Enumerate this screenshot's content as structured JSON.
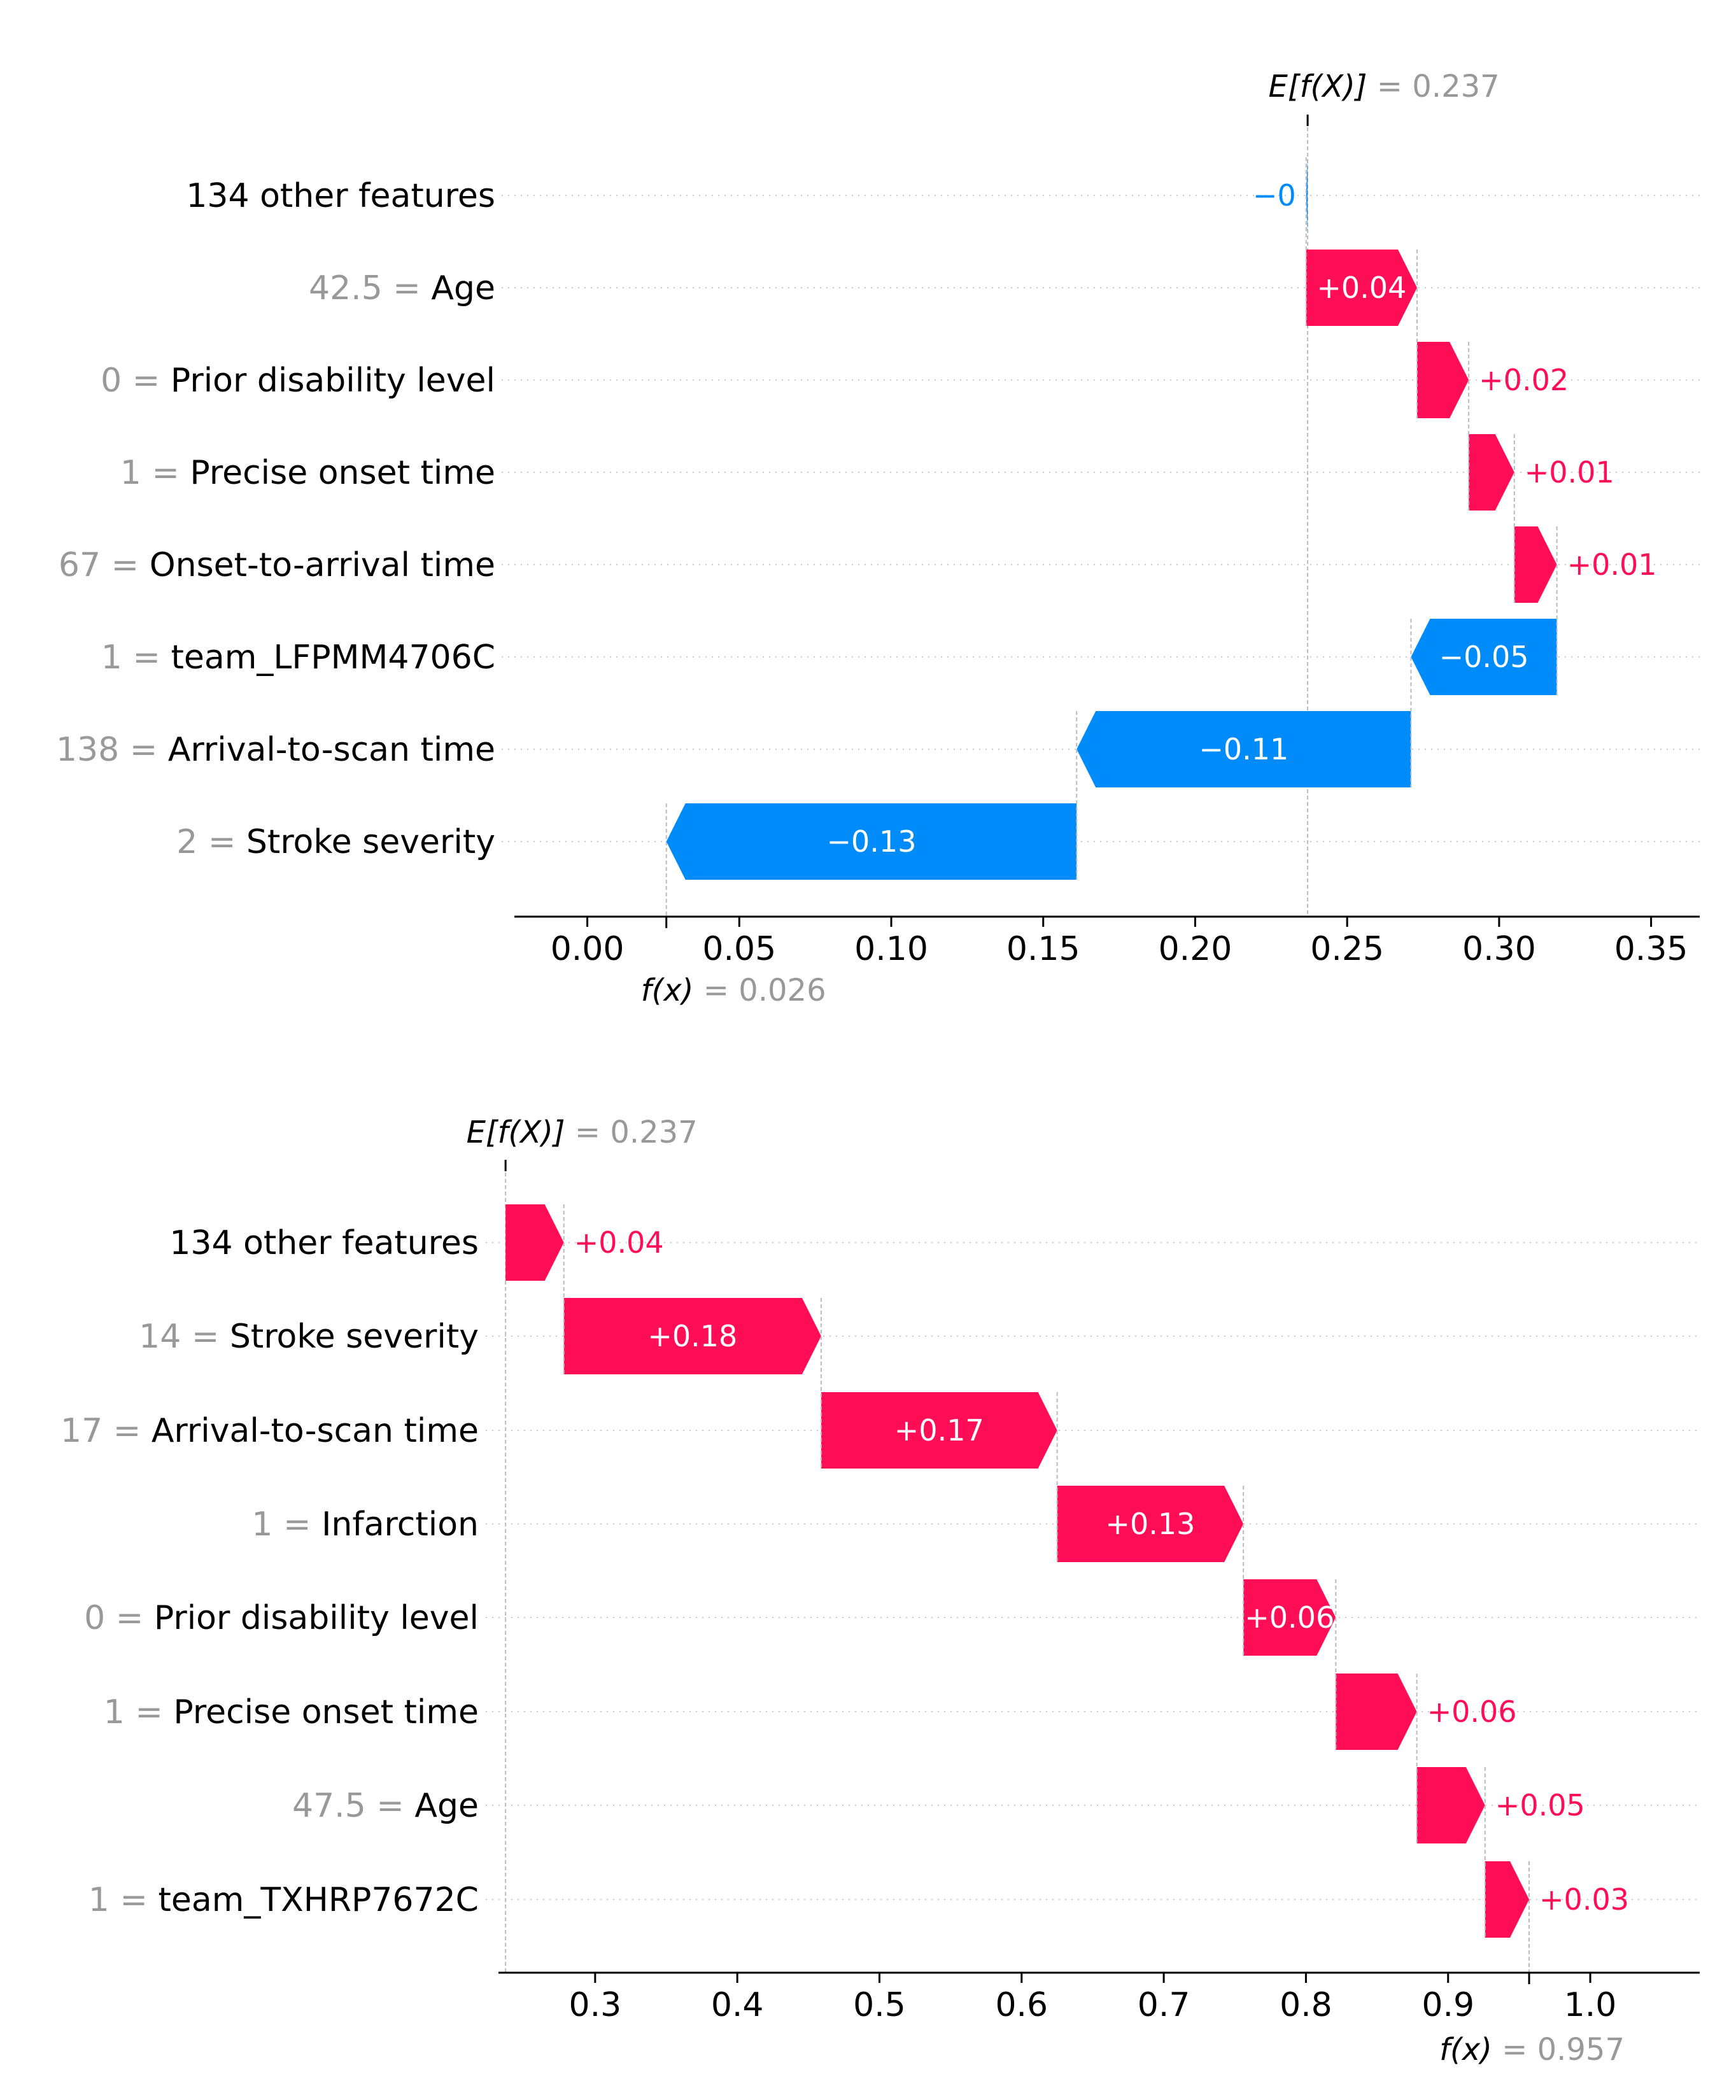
{
  "colors": {
    "positive": "#ff0d57",
    "negative": "#008bfb",
    "gray": "#999999"
  },
  "chart_data": [
    {
      "type": "waterfall",
      "base_value": 0.237,
      "base_label": {
        "math": "E[f(X)]",
        "value": " = 0.237"
      },
      "fx_value": 0.026,
      "fx_label": {
        "math": "f(x)",
        "value": " = 0.026"
      },
      "xlim": [
        -0.024,
        0.366
      ],
      "xticks": [
        {
          "v": 0.0,
          "label": "0.00"
        },
        {
          "v": 0.05,
          "label": "0.05"
        },
        {
          "v": 0.1,
          "label": "0.10"
        },
        {
          "v": 0.15,
          "label": "0.15"
        },
        {
          "v": 0.2,
          "label": "0.20"
        },
        {
          "v": 0.25,
          "label": "0.25"
        },
        {
          "v": 0.3,
          "label": "0.30"
        },
        {
          "v": 0.35,
          "label": "0.35"
        }
      ],
      "features": [
        {
          "value": "",
          "name": "134 other features",
          "start": 0.237,
          "end": 0.2365,
          "label": "−0"
        },
        {
          "value": "42.5",
          "name": "Age",
          "start": 0.2365,
          "end": 0.273,
          "label": "+0.04"
        },
        {
          "value": "0",
          "name": "Prior disability level",
          "start": 0.273,
          "end": 0.29,
          "label": "+0.02"
        },
        {
          "value": "1",
          "name": "Precise onset time",
          "start": 0.29,
          "end": 0.305,
          "label": "+0.01"
        },
        {
          "value": "67",
          "name": "Onset-to-arrival time",
          "start": 0.305,
          "end": 0.319,
          "label": "+0.01"
        },
        {
          "value": "1",
          "name": "team_LFPMM4706C",
          "start": 0.319,
          "end": 0.271,
          "label": "−0.05"
        },
        {
          "value": "138",
          "name": "Arrival-to-scan time",
          "start": 0.271,
          "end": 0.161,
          "label": "−0.11"
        },
        {
          "value": "2",
          "name": "Stroke severity",
          "start": 0.161,
          "end": 0.026,
          "label": "−0.13"
        }
      ]
    },
    {
      "type": "waterfall",
      "base_value": 0.237,
      "base_label": {
        "math": "E[f(X)]",
        "value": " = 0.237"
      },
      "fx_value": 0.957,
      "fx_label": {
        "math": "f(x)",
        "value": " = 0.957"
      },
      "xlim": [
        0.232,
        1.077
      ],
      "xticks": [
        {
          "v": 0.3,
          "label": "0.3"
        },
        {
          "v": 0.4,
          "label": "0.4"
        },
        {
          "v": 0.5,
          "label": "0.5"
        },
        {
          "v": 0.6,
          "label": "0.6"
        },
        {
          "v": 0.7,
          "label": "0.7"
        },
        {
          "v": 0.8,
          "label": "0.8"
        },
        {
          "v": 0.9,
          "label": "0.9"
        },
        {
          "v": 1.0,
          "label": "1.0"
        }
      ],
      "features": [
        {
          "value": "",
          "name": "134 other features",
          "start": 0.237,
          "end": 0.278,
          "label": "+0.04"
        },
        {
          "value": "14",
          "name": "Stroke severity",
          "start": 0.278,
          "end": 0.459,
          "label": "+0.18"
        },
        {
          "value": "17",
          "name": "Arrival-to-scan time",
          "start": 0.459,
          "end": 0.625,
          "label": "+0.17"
        },
        {
          "value": "1",
          "name": "Infarction",
          "start": 0.625,
          "end": 0.756,
          "label": "+0.13"
        },
        {
          "value": "0",
          "name": "Prior disability level",
          "start": 0.756,
          "end": 0.821,
          "label": "+0.06"
        },
        {
          "value": "1",
          "name": "Precise onset time",
          "start": 0.821,
          "end": 0.878,
          "label": "+0.06"
        },
        {
          "value": "47.5",
          "name": "Age",
          "start": 0.878,
          "end": 0.926,
          "label": "+0.05"
        },
        {
          "value": "1",
          "name": "team_TXHRP7672C",
          "start": 0.926,
          "end": 0.957,
          "label": "+0.03"
        }
      ]
    }
  ]
}
